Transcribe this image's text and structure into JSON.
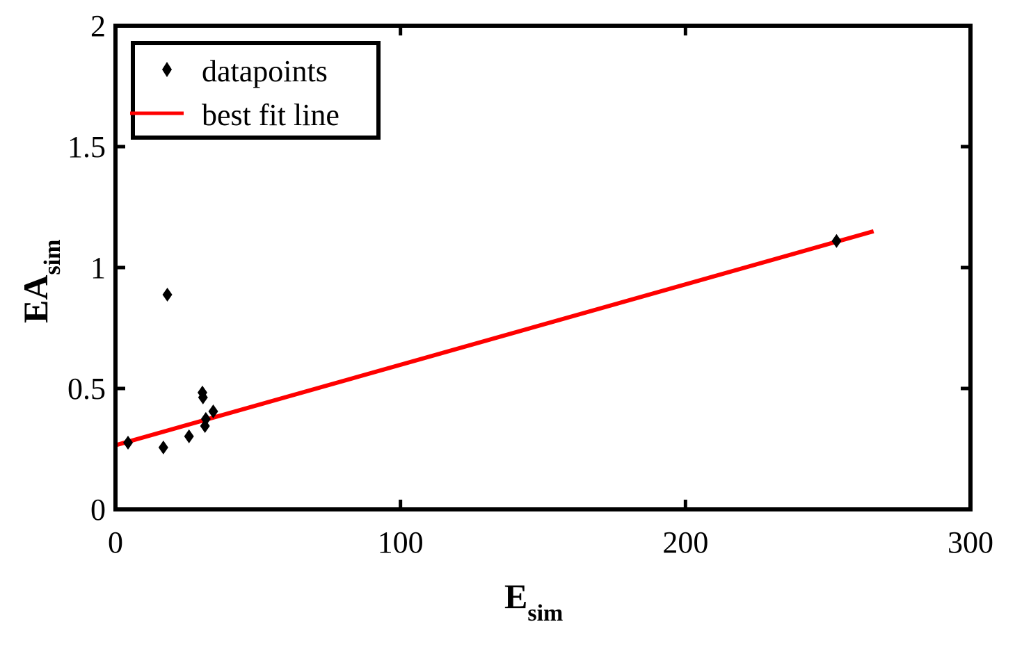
{
  "chart_data": {
    "type": "scatter",
    "title": "",
    "xlabel": "E_sim",
    "xlabel_main": "E",
    "xlabel_sub": "sim",
    "ylabel": "EA_sim",
    "ylabel_main": "EA",
    "ylabel_sub": "sim",
    "xlim": [
      0,
      300
    ],
    "ylim": [
      0,
      2
    ],
    "xticks": [
      0,
      100,
      200,
      300
    ],
    "xtick_labels": [
      "0",
      "100",
      "200",
      "300"
    ],
    "yticks": [
      0,
      0.5,
      1,
      1.5,
      2
    ],
    "ytick_labels": [
      "0",
      "0.5",
      "1",
      "1.5",
      "2"
    ],
    "grid": false,
    "legend_position": "upper left",
    "series": [
      {
        "name": "datapoints",
        "kind": "scatter",
        "marker": "diamond",
        "color": "#000000",
        "points": [
          {
            "x": 4.4,
            "y": 0.276
          },
          {
            "x": 16.8,
            "y": 0.256
          },
          {
            "x": 18.2,
            "y": 0.888
          },
          {
            "x": 25.8,
            "y": 0.302
          },
          {
            "x": 30.5,
            "y": 0.483
          },
          {
            "x": 30.7,
            "y": 0.463
          },
          {
            "x": 31.4,
            "y": 0.345
          },
          {
            "x": 31.7,
            "y": 0.374
          },
          {
            "x": 34.3,
            "y": 0.405
          },
          {
            "x": 253,
            "y": 1.11
          }
        ]
      },
      {
        "name": "best fit line",
        "kind": "line",
        "color": "#ff0000",
        "points": [
          {
            "x": 0.5,
            "y": 0.267
          },
          {
            "x": 266,
            "y": 1.15
          }
        ]
      }
    ]
  },
  "legend": {
    "items": [
      {
        "label": "datapoints"
      },
      {
        "label": "best fit line"
      }
    ]
  }
}
